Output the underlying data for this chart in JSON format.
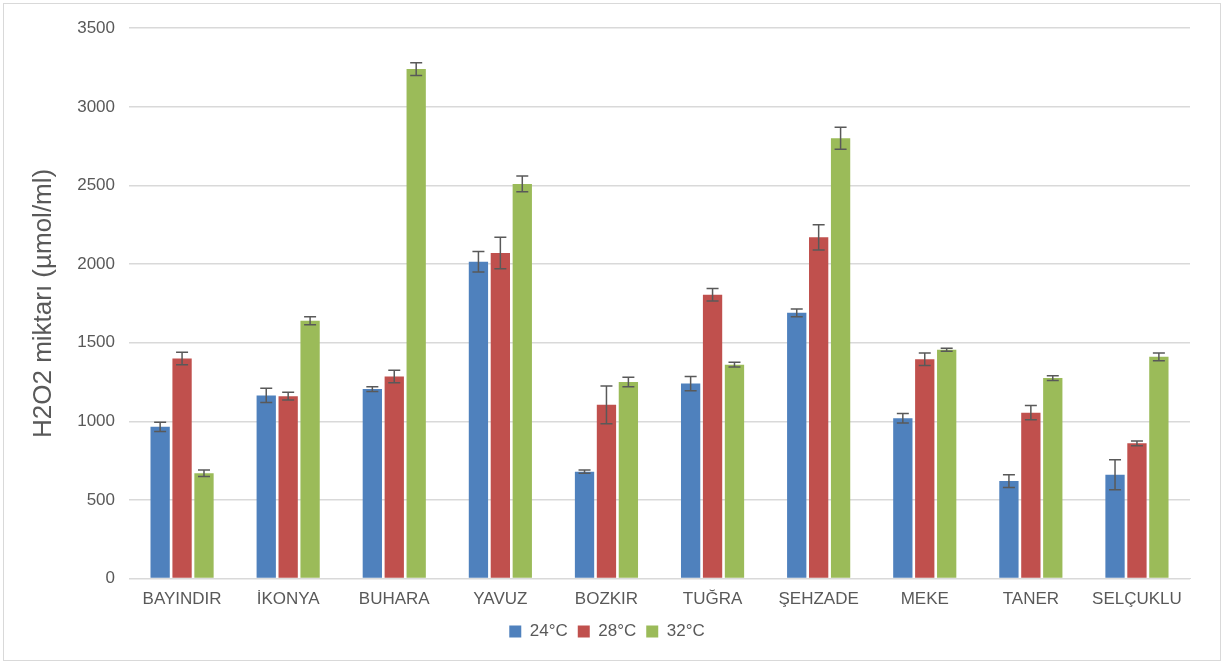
{
  "chart_data": {
    "type": "bar",
    "ylabel": "H2O2 miktarı (µmol/ml)",
    "categories": [
      "BAYINDIR",
      "İKONYA",
      "BUHARA",
      "YAVUZ",
      "BOZKIR",
      "TUĞRA",
      "ŞEHZADE",
      "MEKE",
      "TANER",
      "SELÇUKLU"
    ],
    "series": [
      {
        "name": "24°C",
        "color": "#4f81bd",
        "values": [
          965,
          1165,
          1205,
          2015,
          680,
          1240,
          1690,
          1020,
          620,
          660
        ],
        "errors": [
          30,
          45,
          15,
          65,
          10,
          45,
          25,
          30,
          40,
          95
        ]
      },
      {
        "name": "28°C",
        "color": "#c0504d",
        "values": [
          1400,
          1160,
          1285,
          2070,
          1105,
          1805,
          2170,
          1395,
          1055,
          860
        ],
        "errors": [
          40,
          25,
          40,
          100,
          120,
          40,
          80,
          40,
          45,
          15
        ]
      },
      {
        "name": "32°C",
        "color": "#9bbb59",
        "values": [
          670,
          1640,
          3240,
          2510,
          1250,
          1360,
          2800,
          1455,
          1275,
          1410
        ],
        "errors": [
          20,
          25,
          40,
          50,
          30,
          15,
          70,
          10,
          15,
          25
        ]
      }
    ],
    "ylim": [
      0,
      3500
    ],
    "yticks": [
      0,
      500,
      1000,
      1500,
      2000,
      2500,
      3000,
      3500
    ],
    "grid": "y",
    "legend": "bottom"
  }
}
